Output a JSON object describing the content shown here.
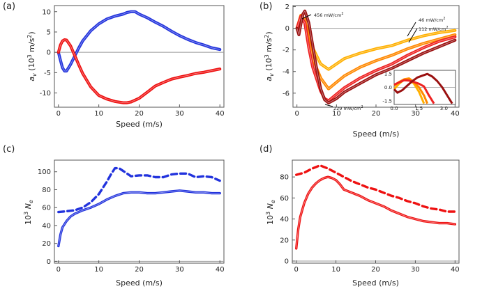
{
  "chart_data": [
    {
      "type": "line",
      "panel_label": "(a)",
      "xlabel": "Speed (m/s)",
      "ylabel_prefix": "a",
      "ylabel_sub": "v",
      "ylabel_suffix": " (10",
      "ylabel_sup": "3",
      "ylabel_end": " m/s",
      "ylabel_sup2": "2",
      "ylabel_close": ")",
      "xlim": [
        -1,
        41
      ],
      "ylim": [
        -13.5,
        11.5
      ],
      "xticks": [
        "0",
        "10",
        "20",
        "30",
        "40"
      ],
      "yticks": [
        "10",
        "5",
        "0",
        "-5",
        "-10"
      ],
      "hline": 0,
      "series": [
        {
          "name": "blue",
          "color": "#2233dd",
          "style": "solid",
          "x": [
            0,
            0.5,
            1,
            1.5,
            2,
            3,
            4,
            5,
            6,
            8,
            10,
            12,
            14,
            16,
            17,
            18,
            19,
            20,
            22,
            24,
            26,
            28,
            30,
            32,
            34,
            36,
            38,
            40
          ],
          "y": [
            0,
            -2,
            -3.8,
            -4.6,
            -4.6,
            -3,
            -1,
            1,
            2.8,
            5.3,
            7,
            8.2,
            8.9,
            9.4,
            9.8,
            10,
            10,
            9.4,
            8.5,
            7.4,
            6.4,
            5.2,
            4.1,
            3.2,
            2.4,
            1.8,
            1.1,
            0.7
          ]
        },
        {
          "name": "red",
          "color": "#ee1111",
          "style": "solid",
          "x": [
            0,
            0.5,
            1,
            1.5,
            2,
            3,
            4,
            5,
            6,
            8,
            10,
            12,
            14,
            16,
            17,
            18,
            20,
            22,
            24,
            26,
            28,
            30,
            32,
            34,
            36,
            38,
            40
          ],
          "y": [
            0,
            1.8,
            2.8,
            3.1,
            3.0,
            1.6,
            -0.7,
            -3,
            -5.2,
            -8.5,
            -10.6,
            -11.5,
            -12.1,
            -12.4,
            -12.4,
            -12.2,
            -11.3,
            -9.8,
            -8.3,
            -7.4,
            -6.6,
            -6.1,
            -5.7,
            -5.2,
            -4.9,
            -4.5,
            -4.1
          ]
        }
      ]
    },
    {
      "type": "line",
      "panel_label": "(b)",
      "xlabel": "Speed (m/s)",
      "ylabel_prefix": "a",
      "ylabel_sub": "v",
      "ylabel_suffix": " (10",
      "ylabel_sup": "3",
      "ylabel_end": " m/s",
      "ylabel_sup2": "2",
      "ylabel_close": ")",
      "xlim": [
        -1,
        41
      ],
      "ylim": [
        -7.3,
        2.1
      ],
      "xticks": [
        "0",
        "10",
        "20",
        "30",
        "40"
      ],
      "yticks": [
        "2",
        "0",
        "-2",
        "-4",
        "-6"
      ],
      "hline": 0,
      "annotations": [
        {
          "text": "456  mW/cm",
          "sup": "2"
        },
        {
          "text": "46  mW/cm",
          "sup": "2"
        },
        {
          "text": "112  mW/cm",
          "sup": "2"
        },
        {
          "text": "229  mW/cm",
          "sup": "2"
        }
      ],
      "series": [
        {
          "name": "46 mW/cm2",
          "color": "#ffb000",
          "x": [
            0,
            1,
            2,
            3,
            4,
            6,
            8,
            10,
            12,
            16,
            20,
            24,
            28,
            32,
            36,
            40
          ],
          "y": [
            0,
            1.0,
            0.7,
            -0.6,
            -1.8,
            -3.3,
            -3.8,
            -3.3,
            -2.8,
            -2.3,
            -1.9,
            -1.6,
            -1.1,
            -0.7,
            -0.4,
            -0.2
          ]
        },
        {
          "name": "112 mW/cm2",
          "color": "#ff8800",
          "x": [
            0,
            1,
            2,
            3,
            4,
            6,
            8,
            10,
            12,
            16,
            20,
            24,
            28,
            32,
            36,
            40
          ],
          "y": [
            0,
            1.2,
            0.8,
            -1.2,
            -2.8,
            -4.6,
            -5.6,
            -5.0,
            -4.4,
            -3.6,
            -3.0,
            -2.5,
            -1.9,
            -1.4,
            -1.0,
            -0.6
          ]
        },
        {
          "name": "229 mW/cm2",
          "color": "#ee2222",
          "x": [
            0,
            1,
            2,
            3,
            4,
            6,
            7,
            8,
            10,
            12,
            16,
            20,
            24,
            28,
            32,
            36,
            40
          ],
          "y": [
            0,
            1.1,
            0.5,
            -1.8,
            -3.6,
            -5.8,
            -6.5,
            -6.7,
            -6.1,
            -5.5,
            -4.6,
            -3.9,
            -3.3,
            -2.5,
            -1.8,
            -1.2,
            -0.8
          ]
        },
        {
          "name": "456 mW/cm2",
          "color": "#9a1010",
          "x": [
            0,
            0.5,
            1,
            1.5,
            2,
            3,
            4,
            5,
            6,
            7,
            8,
            10,
            12,
            16,
            20,
            24,
            28,
            32,
            36,
            40
          ],
          "y": [
            0,
            -0.6,
            0.4,
            1.3,
            1.6,
            0.5,
            -1.6,
            -3.8,
            -5.6,
            -6.6,
            -6.9,
            -6.5,
            -5.9,
            -5.1,
            -4.3,
            -3.7,
            -3.0,
            -2.3,
            -1.7,
            -1.1
          ]
        }
      ],
      "inset": {
        "xlim": [
          0,
          3.7
        ],
        "ylim": [
          -1.9,
          1.9
        ],
        "xticks": [
          "0.0",
          "1.5",
          "3.0"
        ],
        "yticks": [
          "1.5",
          "0.0",
          "-1.5"
        ],
        "series": [
          {
            "color": "#ffb000",
            "x": [
              0,
              0.3,
              0.6,
              0.9,
              1.2,
              1.5,
              1.8
            ],
            "y": [
              -0.2,
              0.4,
              0.85,
              0.9,
              0.4,
              -0.5,
              -1.8
            ]
          },
          {
            "color": "#ff8800",
            "x": [
              0,
              0.3,
              0.6,
              0.9,
              1.2,
              1.5,
              1.8,
              2.0
            ],
            "y": [
              0.2,
              0.6,
              0.9,
              1.0,
              0.6,
              0.0,
              -0.9,
              -1.8
            ]
          },
          {
            "color": "#ee2222",
            "x": [
              0,
              0.3,
              0.6,
              0.9,
              1.2,
              1.5,
              1.8,
              2.1,
              2.4
            ],
            "y": [
              0.3,
              0.55,
              0.8,
              0.75,
              0.6,
              0.4,
              0.1,
              -0.9,
              -1.8
            ]
          },
          {
            "color": "#9a1010",
            "x": [
              0,
              0.2,
              0.5,
              0.8,
              1.1,
              1.4,
              1.7,
              2.0,
              2.3,
              2.6,
              2.9,
              3.2,
              3.5
            ],
            "y": [
              -0.2,
              -0.6,
              -0.3,
              0.2,
              0.7,
              1.1,
              1.3,
              1.5,
              1.2,
              0.7,
              0.0,
              -0.9,
              -1.8
            ]
          }
        ]
      }
    },
    {
      "type": "line",
      "panel_label": "(c)",
      "xlabel": "Speed (m/s)",
      "ylabel_prefix": "10",
      "ylabel_sup": "3",
      "ylabel_var": " N",
      "ylabel_sub": "e",
      "xlim": [
        -1,
        41
      ],
      "ylim": [
        -2,
        113
      ],
      "xticks": [
        "0",
        "10",
        "20",
        "30",
        "40"
      ],
      "yticks": [
        "100",
        "80",
        "60",
        "40",
        "20",
        "0"
      ],
      "hline": 0,
      "series": [
        {
          "name": "solid",
          "color": "#2233dd",
          "style": "solid",
          "x": [
            0,
            0.5,
            1,
            2,
            3,
            4,
            6,
            8,
            10,
            12,
            14,
            16,
            18,
            20,
            22,
            24,
            26,
            28,
            30,
            32,
            34,
            36,
            38,
            40
          ],
          "y": [
            17,
            30,
            38,
            45,
            50,
            53,
            57,
            60,
            64,
            69,
            73,
            76,
            77,
            77,
            76,
            76,
            77,
            78,
            79,
            78,
            77,
            77,
            76,
            76
          ]
        },
        {
          "name": "dashed",
          "color": "#2233dd",
          "style": "dashed",
          "x": [
            0,
            2,
            4,
            6,
            8,
            10,
            12,
            13,
            14,
            15,
            16,
            18,
            20,
            22,
            24,
            26,
            28,
            30,
            32,
            34,
            36,
            38,
            40
          ],
          "y": [
            55,
            56,
            57,
            60,
            66,
            75,
            89,
            97,
            104,
            104,
            101,
            95,
            96,
            96,
            94,
            94,
            97,
            98,
            98,
            94,
            95,
            94,
            90
          ]
        }
      ]
    },
    {
      "type": "line",
      "panel_label": "(d)",
      "xlabel": "Speed (m/s)",
      "ylabel_prefix": "10",
      "ylabel_sup": "3",
      "ylabel_var": " N",
      "ylabel_sub": "e",
      "xlim": [
        -1,
        41
      ],
      "ylim": [
        -2,
        96
      ],
      "xticks": [
        "0",
        "10",
        "20",
        "30",
        "40"
      ],
      "yticks": [
        "80",
        "60",
        "40",
        "20",
        "0"
      ],
      "hline": 0,
      "series": [
        {
          "name": "solid",
          "color": "#ee1111",
          "style": "solid",
          "x": [
            0,
            0.5,
            1,
            2,
            3,
            4,
            5,
            6,
            7,
            8,
            9,
            10,
            11,
            12,
            14,
            16,
            18,
            20,
            22,
            24,
            26,
            28,
            30,
            32,
            34,
            36,
            38,
            40
          ],
          "y": [
            12,
            30,
            42,
            55,
            64,
            70,
            74,
            77,
            79,
            80,
            79,
            77,
            73,
            68,
            65,
            62,
            58,
            55,
            52,
            48,
            45,
            42,
            40,
            38,
            37,
            36,
            36,
            35
          ]
        },
        {
          "name": "dashed",
          "color": "#ee1111",
          "style": "dashed",
          "x": [
            0,
            2,
            4,
            6,
            8,
            10,
            12,
            14,
            16,
            18,
            20,
            22,
            24,
            26,
            28,
            30,
            32,
            34,
            36,
            38,
            40
          ],
          "y": [
            82,
            84,
            88,
            91,
            88,
            84,
            80,
            76,
            73,
            70,
            68,
            65,
            62,
            60,
            57,
            55,
            52,
            50,
            49,
            47,
            47
          ]
        }
      ]
    }
  ]
}
